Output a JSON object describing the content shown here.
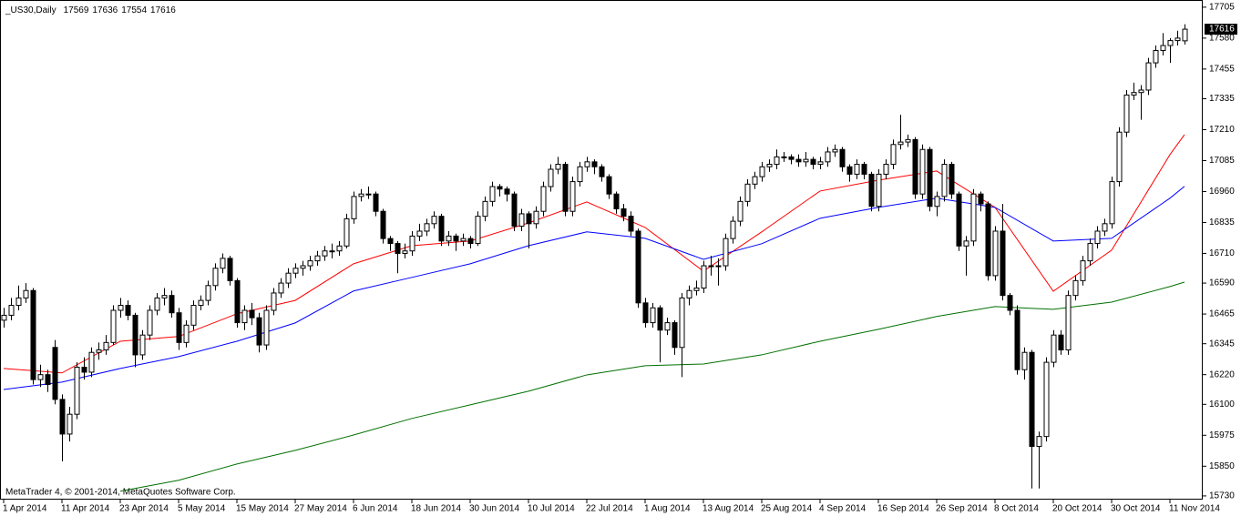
{
  "chart_data": {
    "type": "candlestick",
    "title": "_US30,Daily",
    "footer": "MetaTrader 4, © 2001-2014, MetaQuotes Software Corp.",
    "ylim": [
      15715,
      17734
    ],
    "yticks": [
      17705,
      17580,
      17455,
      17335,
      17210,
      17085,
      16960,
      16835,
      16710,
      16590,
      16465,
      16345,
      16220,
      16100,
      15975,
      15850,
      15730
    ],
    "xticks": [
      {
        "value": 0,
        "label": "1 Apr 2014"
      },
      {
        "value": 8,
        "label": "11 Apr 2014"
      },
      {
        "value": 16,
        "label": "23 Apr 2014"
      },
      {
        "value": 24,
        "label": "5 May 2014"
      },
      {
        "value": 32,
        "label": "15 May 2014"
      },
      {
        "value": 40,
        "label": "27 May 2014"
      },
      {
        "value": 48,
        "label": "6 Jun 2014"
      },
      {
        "value": 56,
        "label": "18 Jun 2014"
      },
      {
        "value": 64,
        "label": "30 Jun 2014"
      },
      {
        "value": 72,
        "label": "10 Jul 2014"
      },
      {
        "value": 80,
        "label": "22 Jul 2014"
      },
      {
        "value": 88,
        "label": "1 Aug 2014"
      },
      {
        "value": 96,
        "label": "13 Aug 2014"
      },
      {
        "value": 104,
        "label": "25 Aug 2014"
      },
      {
        "value": 112,
        "label": "4 Sep 2014"
      },
      {
        "value": 120,
        "label": "16 Sep 2014"
      },
      {
        "value": 128,
        "label": "26 Sep 2014"
      },
      {
        "value": 136,
        "label": "8 Oct 2014"
      },
      {
        "value": 144,
        "label": "20 Oct 2014"
      },
      {
        "value": 152,
        "label": "30 Oct 2014"
      },
      {
        "value": 160,
        "label": "11 Nov 2014"
      }
    ],
    "up_color": "#ffffff",
    "down_color": "#000000",
    "ohlc": [
      [
        16440,
        16490,
        16410,
        16460
      ],
      [
        16460,
        16530,
        16440,
        16500
      ],
      [
        16500,
        16580,
        16480,
        16530
      ],
      [
        16530,
        16590,
        16510,
        16560
      ],
      [
        16560,
        16570,
        16180,
        16200
      ],
      [
        16200,
        16260,
        16170,
        16220
      ],
      [
        16220,
        16240,
        16150,
        16180
      ],
      [
        16330,
        16360,
        16100,
        16120
      ],
      [
        16120,
        16140,
        15870,
        15980
      ],
      [
        15980,
        16090,
        15950,
        16060
      ],
      [
        16060,
        16270,
        16040,
        16250
      ],
      [
        16250,
        16290,
        16200,
        16230
      ],
      [
        16230,
        16330,
        16210,
        16310
      ],
      [
        16310,
        16350,
        16280,
        16320
      ],
      [
        16320,
        16380,
        16300,
        16350
      ],
      [
        16350,
        16500,
        16340,
        16480
      ],
      [
        16480,
        16530,
        16450,
        16500
      ],
      [
        16500,
        16520,
        16440,
        16460
      ],
      [
        16460,
        16470,
        16250,
        16300
      ],
      [
        16300,
        16400,
        16280,
        16380
      ],
      [
        16380,
        16500,
        16360,
        16480
      ],
      [
        16480,
        16550,
        16460,
        16530
      ],
      [
        16530,
        16570,
        16500,
        16540
      ],
      [
        16540,
        16560,
        16450,
        16470
      ],
      [
        16470,
        16490,
        16320,
        16350
      ],
      [
        16350,
        16440,
        16330,
        16420
      ],
      [
        16420,
        16520,
        16400,
        16500
      ],
      [
        16500,
        16540,
        16480,
        16520
      ],
      [
        16520,
        16600,
        16500,
        16580
      ],
      [
        16580,
        16670,
        16560,
        16650
      ],
      [
        16650,
        16710,
        16630,
        16690
      ],
      [
        16690,
        16700,
        16580,
        16600
      ],
      [
        16600,
        16610,
        16410,
        16430
      ],
      [
        16430,
        16500,
        16400,
        16480
      ],
      [
        16480,
        16510,
        16420,
        16450
      ],
      [
        16450,
        16470,
        16310,
        16340
      ],
      [
        16340,
        16500,
        16320,
        16480
      ],
      [
        16480,
        16570,
        16460,
        16550
      ],
      [
        16550,
        16610,
        16530,
        16590
      ],
      [
        16590,
        16650,
        16570,
        16630
      ],
      [
        16630,
        16670,
        16610,
        16650
      ],
      [
        16650,
        16680,
        16620,
        16660
      ],
      [
        16660,
        16700,
        16640,
        16680
      ],
      [
        16680,
        16720,
        16660,
        16700
      ],
      [
        16700,
        16740,
        16680,
        16720
      ],
      [
        16720,
        16750,
        16690,
        16720
      ],
      [
        16720,
        16760,
        16700,
        16740
      ],
      [
        16740,
        16870,
        16730,
        16850
      ],
      [
        16850,
        16960,
        16830,
        16940
      ],
      [
        16940,
        16970,
        16920,
        16950
      ],
      [
        16950,
        16980,
        16930,
        16950
      ],
      [
        16950,
        16960,
        16860,
        16880
      ],
      [
        16880,
        16890,
        16750,
        16770
      ],
      [
        16770,
        16780,
        16720,
        16750
      ],
      [
        16750,
        16760,
        16630,
        16710
      ],
      [
        16710,
        16750,
        16690,
        16720
      ],
      [
        16720,
        16800,
        16700,
        16780
      ],
      [
        16780,
        16830,
        16760,
        16800
      ],
      [
        16800,
        16850,
        16780,
        16830
      ],
      [
        16830,
        16880,
        16810,
        16860
      ],
      [
        16860,
        16870,
        16740,
        16760
      ],
      [
        16760,
        16800,
        16740,
        16780
      ],
      [
        16780,
        16790,
        16720,
        16760
      ],
      [
        16760,
        16790,
        16740,
        16770
      ],
      [
        16770,
        16780,
        16730,
        16750
      ],
      [
        16750,
        16880,
        16740,
        16860
      ],
      [
        16860,
        16940,
        16840,
        16920
      ],
      [
        16920,
        17000,
        16900,
        16980
      ],
      [
        16980,
        16990,
        16940,
        16970
      ],
      [
        16970,
        16980,
        16920,
        16950
      ],
      [
        16950,
        16960,
        16800,
        16820
      ],
      [
        16820,
        16890,
        16800,
        16870
      ],
      [
        16870,
        16880,
        16730,
        16830
      ],
      [
        16830,
        16900,
        16810,
        16880
      ],
      [
        16880,
        17000,
        16860,
        16980
      ],
      [
        16980,
        17070,
        16960,
        17050
      ],
      [
        17050,
        17100,
        17030,
        17070
      ],
      [
        17070,
        17080,
        16860,
        16880
      ],
      [
        16880,
        17020,
        16860,
        17000
      ],
      [
        17000,
        17080,
        16980,
        17060
      ],
      [
        17060,
        17100,
        17040,
        17080
      ],
      [
        17080,
        17090,
        17030,
        17060
      ],
      [
        17060,
        17070,
        17000,
        17020
      ],
      [
        17020,
        17030,
        16930,
        16950
      ],
      [
        16950,
        16960,
        16870,
        16890
      ],
      [
        16890,
        16910,
        16840,
        16860
      ],
      [
        16860,
        16880,
        16780,
        16800
      ],
      [
        16800,
        16810,
        16490,
        16510
      ],
      [
        16510,
        16530,
        16410,
        16430
      ],
      [
        16430,
        16510,
        16410,
        16490
      ],
      [
        16490,
        16500,
        16270,
        16400
      ],
      [
        16400,
        16450,
        16380,
        16430
      ],
      [
        16430,
        16440,
        16300,
        16330
      ],
      [
        16330,
        16550,
        16210,
        16530
      ],
      [
        16530,
        16580,
        16500,
        16560
      ],
      [
        16560,
        16600,
        16540,
        16570
      ],
      [
        16570,
        16680,
        16550,
        16660
      ],
      [
        16660,
        16700,
        16620,
        16660
      ],
      [
        16660,
        16690,
        16580,
        16660
      ],
      [
        16660,
        16790,
        16640,
        16770
      ],
      [
        16770,
        16860,
        16750,
        16840
      ],
      [
        16840,
        16940,
        16820,
        16920
      ],
      [
        16920,
        17010,
        16900,
        16990
      ],
      [
        16990,
        17040,
        16970,
        17020
      ],
      [
        17020,
        17080,
        17000,
        17060
      ],
      [
        17060,
        17090,
        17040,
        17070
      ],
      [
        17070,
        17130,
        17050,
        17100
      ],
      [
        17100,
        17120,
        17080,
        17100
      ],
      [
        17100,
        17110,
        17070,
        17090
      ],
      [
        17090,
        17110,
        17060,
        17080
      ],
      [
        17080,
        17120,
        17060,
        17090
      ],
      [
        17090,
        17100,
        17050,
        17070
      ],
      [
        17070,
        17100,
        17050,
        17080
      ],
      [
        17080,
        17140,
        17060,
        17120
      ],
      [
        17120,
        17150,
        17100,
        17130
      ],
      [
        17130,
        17140,
        17040,
        17060
      ],
      [
        17060,
        17070,
        17000,
        17030
      ],
      [
        17030,
        17090,
        17010,
        17070
      ],
      [
        17070,
        17080,
        17010,
        17030
      ],
      [
        17030,
        17040,
        16880,
        16900
      ],
      [
        16900,
        17050,
        16880,
        17030
      ],
      [
        17030,
        17090,
        17010,
        17070
      ],
      [
        17070,
        17170,
        17050,
        17150
      ],
      [
        17150,
        17270,
        17130,
        17160
      ],
      [
        17160,
        17190,
        17140,
        17170
      ],
      [
        17170,
        17180,
        16930,
        16950
      ],
      [
        16950,
        17150,
        16930,
        17130
      ],
      [
        17130,
        17140,
        16880,
        16900
      ],
      [
        16900,
        16960,
        16860,
        16940
      ],
      [
        16940,
        17090,
        16920,
        17070
      ],
      [
        17070,
        17080,
        16930,
        16950
      ],
      [
        16950,
        16960,
        16720,
        16740
      ],
      [
        16740,
        16780,
        16620,
        16760
      ],
      [
        16760,
        16970,
        16740,
        16950
      ],
      [
        16950,
        16960,
        16880,
        16910
      ],
      [
        16910,
        16920,
        16600,
        16620
      ],
      [
        16620,
        16820,
        16600,
        16800
      ],
      [
        16800,
        16910,
        16520,
        16540
      ],
      [
        16540,
        16550,
        16460,
        16480
      ],
      [
        16480,
        16500,
        16220,
        16240
      ],
      [
        16240,
        16330,
        16200,
        16310
      ],
      [
        16310,
        16320,
        15760,
        15930
      ],
      [
        15930,
        15990,
        15760,
        15970
      ],
      [
        15970,
        16290,
        15950,
        16270
      ],
      [
        16270,
        16400,
        16250,
        16380
      ],
      [
        16380,
        16400,
        16300,
        16320
      ],
      [
        16320,
        16560,
        16300,
        16540
      ],
      [
        16540,
        16620,
        16520,
        16600
      ],
      [
        16600,
        16700,
        16580,
        16680
      ],
      [
        16680,
        16770,
        16660,
        16750
      ],
      [
        16750,
        16820,
        16730,
        16800
      ],
      [
        16800,
        16850,
        16780,
        16830
      ],
      [
        16830,
        17020,
        16810,
        17000
      ],
      [
        17000,
        17220,
        16980,
        17200
      ],
      [
        17200,
        17370,
        17180,
        17350
      ],
      [
        17350,
        17400,
        17330,
        17360
      ],
      [
        17360,
        17390,
        17250,
        17370
      ],
      [
        17370,
        17500,
        17350,
        17480
      ],
      [
        17480,
        17550,
        17460,
        17530
      ],
      [
        17530,
        17600,
        17510,
        17550
      ],
      [
        17550,
        17580,
        17480,
        17570
      ],
      [
        17570,
        17610,
        17550,
        17580
      ],
      [
        17569,
        17636,
        17554,
        17616
      ]
    ],
    "series_x": [
      0,
      8,
      16,
      24,
      32,
      40,
      48,
      56,
      64,
      72,
      80,
      88,
      96,
      104,
      112,
      120,
      128,
      136,
      144,
      152,
      160,
      162
    ],
    "series": [
      {
        "color": "#ff0000",
        "values": [
          16245,
          16227,
          16355,
          16374,
          16466,
          16520,
          16668,
          16741,
          16760,
          16833,
          16918,
          16815,
          16638,
          16797,
          16962,
          17006,
          17043,
          16896,
          16557,
          16723,
          17109,
          17190
        ]
      },
      {
        "color": "#0000ff",
        "values": [
          16160,
          16190,
          16245,
          16293,
          16355,
          16429,
          16558,
          16613,
          16668,
          16741,
          16797,
          16771,
          16686,
          16749,
          16852,
          16896,
          16933,
          16896,
          16760,
          16771,
          16933,
          16981
        ]
      },
      {
        "color": "#007000",
        "values": [
          null,
          null,
          15749,
          15793,
          15859,
          15914,
          15976,
          16043,
          16098,
          16153,
          16219,
          16256,
          16263,
          16300,
          16355,
          16403,
          16455,
          16495,
          16484,
          16513,
          16576,
          16594
        ]
      }
    ]
  }
}
